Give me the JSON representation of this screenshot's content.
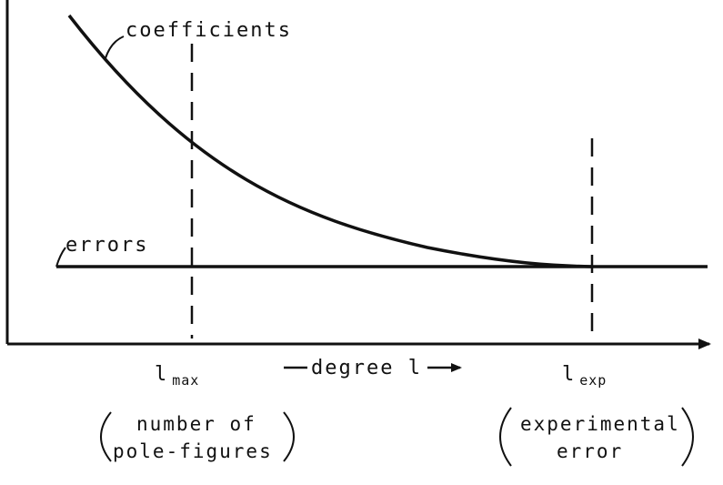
{
  "diagram": {
    "curve_labels": {
      "coefficients": "coefficients",
      "errors": "errors"
    },
    "x_axis": {
      "label": "degree l"
    },
    "markers": [
      {
        "main": "l",
        "sub": "max",
        "note_line1": "number of",
        "note_line2": "pole-figures"
      },
      {
        "main": "l",
        "sub": "exp",
        "note_line1": "experimental",
        "note_line2": "error"
      }
    ],
    "colors": {
      "ink": "#111111",
      "background": "#ffffff"
    }
  }
}
